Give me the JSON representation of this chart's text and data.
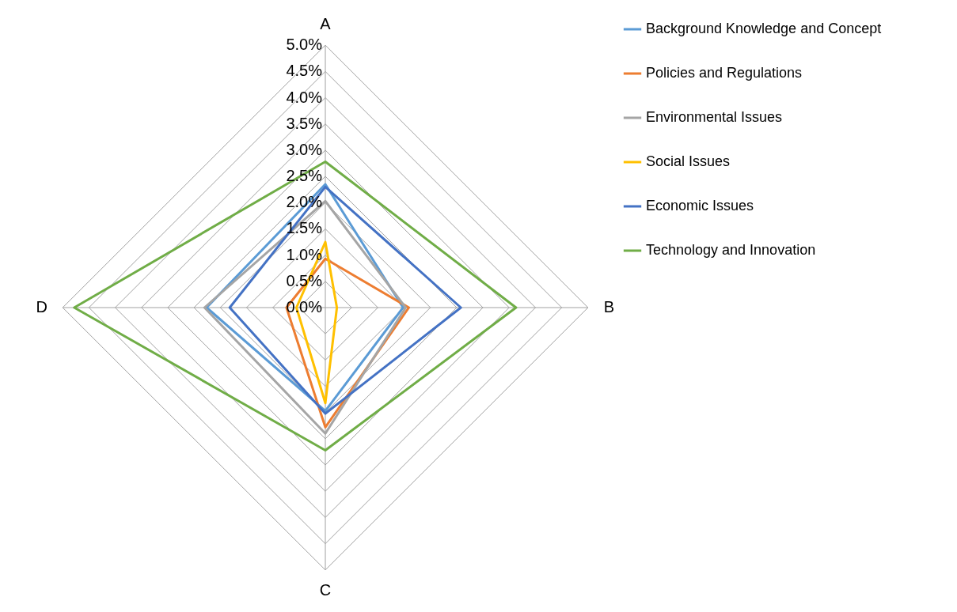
{
  "chart_data": {
    "type": "radar",
    "categories": [
      "A",
      "B",
      "C",
      "D"
    ],
    "series": [
      {
        "name": "Background Knowledge and Concept",
        "color": "#5b9bd5",
        "values": [
          2.35,
          1.48,
          1.97,
          2.26
        ]
      },
      {
        "name": "Policies and Regulations",
        "color": "#ed7d31",
        "values": [
          0.93,
          1.59,
          2.28,
          0.74
        ]
      },
      {
        "name": "Environmental Issues",
        "color": "#a5a5a5",
        "values": [
          2.03,
          1.53,
          2.4,
          2.3
        ]
      },
      {
        "name": "Social Issues",
        "color": "#ffc000",
        "values": [
          1.25,
          0.22,
          1.82,
          0.55
        ]
      },
      {
        "name": "Economic Issues",
        "color": "#4472c4",
        "values": [
          2.3,
          2.58,
          2.02,
          1.82
        ]
      },
      {
        "name": "Technology and Innovation",
        "color": "#70ad47",
        "values": [
          2.78,
          3.63,
          2.72,
          4.78
        ]
      }
    ],
    "ylim": [
      0,
      5
    ],
    "yticks": [
      {
        "value": 0,
        "label": "0.0%"
      },
      {
        "value": 0.5,
        "label": "0.5%"
      },
      {
        "value": 1,
        "label": "1.0%"
      },
      {
        "value": 1.5,
        "label": "1.5%"
      },
      {
        "value": 2,
        "label": "2.0%"
      },
      {
        "value": 2.5,
        "label": "2.5%"
      },
      {
        "value": 3,
        "label": "3.0%"
      },
      {
        "value": 3.5,
        "label": "3.5%"
      },
      {
        "value": 4,
        "label": "4.0%"
      },
      {
        "value": 4.5,
        "label": "4.5%"
      },
      {
        "value": 5,
        "label": "5.0%"
      }
    ],
    "grid": true,
    "legend": "right"
  }
}
